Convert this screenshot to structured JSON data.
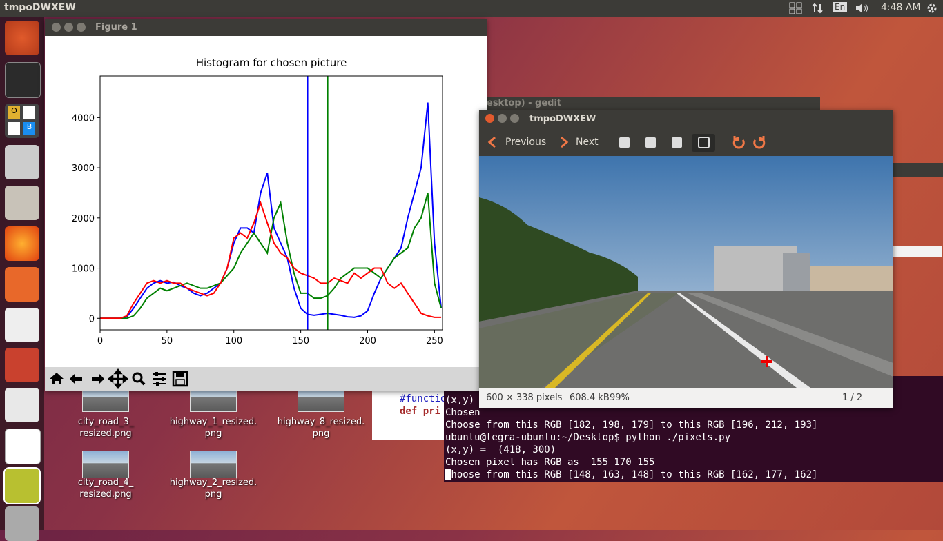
{
  "topbar": {
    "title": "tmpoDWXEW",
    "lang": "En",
    "time": "4:48 AM"
  },
  "launcher_text": [
    "O",
    "B"
  ],
  "figure_window": {
    "title": "Figure 1"
  },
  "chart_data": {
    "type": "line",
    "title": "Histogram for chosen picture",
    "x": [
      0,
      5,
      10,
      15,
      20,
      25,
      30,
      35,
      40,
      45,
      50,
      55,
      60,
      65,
      70,
      75,
      80,
      85,
      90,
      95,
      100,
      105,
      110,
      115,
      120,
      125,
      130,
      135,
      140,
      145,
      150,
      155,
      160,
      165,
      170,
      175,
      180,
      185,
      190,
      195,
      200,
      205,
      210,
      215,
      220,
      225,
      230,
      235,
      240,
      245,
      250,
      255
    ],
    "series": [
      {
        "color": "#0000ff",
        "values": [
          0,
          0,
          0,
          0,
          30,
          200,
          400,
          600,
          700,
          750,
          700,
          720,
          650,
          600,
          500,
          450,
          500,
          600,
          700,
          1000,
          1500,
          1800,
          1800,
          1700,
          2500,
          2900,
          1800,
          1500,
          1200,
          600,
          200,
          80,
          60,
          80,
          100,
          80,
          60,
          30,
          20,
          50,
          150,
          500,
          800,
          1000,
          1200,
          1400,
          2000,
          2500,
          3000,
          4300,
          1500,
          200
        ]
      },
      {
        "color": "#008000",
        "values": [
          0,
          0,
          0,
          0,
          0,
          50,
          200,
          400,
          500,
          600,
          550,
          600,
          650,
          700,
          650,
          600,
          600,
          650,
          700,
          850,
          1000,
          1300,
          1500,
          1700,
          1500,
          1300,
          2000,
          2300,
          1500,
          900,
          500,
          500,
          400,
          400,
          450,
          600,
          800,
          900,
          1000,
          1000,
          1000,
          900,
          800,
          1000,
          1200,
          1300,
          1400,
          1800,
          2000,
          2500,
          700,
          200
        ]
      },
      {
        "color": "#ff0000",
        "values": [
          0,
          0,
          0,
          0,
          50,
          300,
          500,
          700,
          750,
          700,
          750,
          700,
          700,
          600,
          550,
          500,
          450,
          500,
          700,
          1000,
          1600,
          1700,
          1600,
          1900,
          2300,
          1900,
          1500,
          1300,
          1200,
          1000,
          900,
          850,
          800,
          700,
          700,
          800,
          750,
          700,
          900,
          800,
          900,
          1000,
          1000,
          700,
          600,
          700,
          500,
          300,
          100,
          50,
          20,
          20
        ]
      }
    ],
    "vlines": [
      {
        "x": 155,
        "color": "#0000ff"
      },
      {
        "x": 170,
        "color": "#008000"
      }
    ],
    "xlim": [
      0,
      256
    ],
    "ylim": [
      -230,
      4830
    ],
    "xticks": [
      0,
      50,
      100,
      150,
      200,
      250
    ],
    "yticks": [
      0,
      1000,
      2000,
      3000,
      4000
    ]
  },
  "gedit": {
    "title": "esktop) - gedit",
    "code": [
      "#functio",
      "def pri"
    ]
  },
  "viewer": {
    "title": "tmpoDWXEW",
    "previous": "Previous",
    "next": "Next",
    "status": {
      "size": "600 × 338 pixels",
      "bytes": "608.4 kB",
      "zoom": "99%",
      "index": "1 / 2"
    }
  },
  "terminal": {
    "lines": [
      "(x,y)",
      "Chosen",
      "Choose from this RGB [182, 198, 179] to this RGB [196, 212, 193]",
      "ubuntu@tegra-ubuntu:~/Desktop$ python ./pixels.py",
      "(x,y) =  (418, 300)",
      "Chosen pixel has RGB as  155 170 155",
      "Choose from this RGB [148, 163, 148] to this RGB [162, 177, 162]"
    ]
  },
  "desktop_icons": [
    {
      "label": [
        "city_road_3_",
        "resized.png"
      ]
    },
    {
      "label": [
        "highway_1_resized.",
        "png"
      ]
    },
    {
      "label": [
        "highway_8_resized.",
        "png"
      ]
    },
    {
      "label": [
        "city_road_4_",
        "resized.png"
      ]
    },
    {
      "label": [
        "highway_2_resized.",
        "png"
      ]
    }
  ]
}
